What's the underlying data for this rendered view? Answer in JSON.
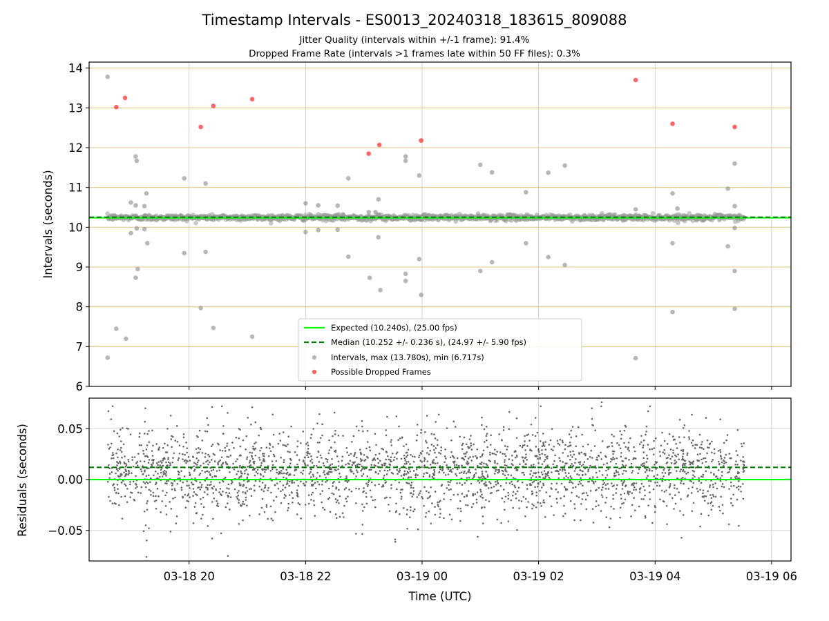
{
  "chart_data": [
    {
      "type": "scatter",
      "title": "Timestamp Intervals - ES0013_20240318_183615_809088",
      "subtitle_line1": "Jitter Quality (intervals within +/-1 frame): 91.4%",
      "subtitle_line2": "Dropped Frame Rate (intervals >1 frames late within 50 FF files): 0.3%",
      "xlabel": "",
      "ylabel": "Intervals (seconds)",
      "x_is_time": true,
      "xlim": [
        "2024-03-18 18:17",
        "2024-03-19 06:20"
      ],
      "ylim": [
        6,
        14.15
      ],
      "y_ticks": [
        6,
        7,
        8,
        9,
        10,
        11,
        12,
        13,
        14
      ],
      "x_tick_positions": [
        "2024-03-18 20:00",
        "2024-03-18 22:00",
        "2024-03-19 00:00",
        "2024-03-19 02:00",
        "2024-03-19 04:00",
        "2024-03-19 06:00"
      ],
      "grid": true,
      "horizontal_reference_lines": [
        7,
        8,
        9,
        10,
        11,
        12,
        13,
        14
      ],
      "horizontal_reference_color": "#d4b86a",
      "expected_line": {
        "label": "Expected (10.240s), (25.00 fps)",
        "y": 10.24,
        "color": "#00ff00"
      },
      "median_line": {
        "label": "Median (10.252 +/- 0.236 s), (24.97 +/- 5.90 fps)",
        "y": 10.252,
        "color": "#008000"
      },
      "legend": {
        "placement": "lower center",
        "entries": [
          "Expected (10.240s), (25.00 fps)",
          "Median (10.252 +/- 0.236 s), (24.97 +/- 5.90 fps)",
          "Intervals, max (13.780s), min (6.717s)",
          "Possible Dropped Frames"
        ]
      },
      "series": [
        {
          "name": "Intervals, max (13.780s), min (6.717s)",
          "color": "#999999",
          "points": [
            [
              "2024-03-18 18:36",
              13.78
            ],
            [
              "2024-03-18 18:36",
              6.72
            ],
            [
              "2024-03-18 18:45",
              7.45
            ],
            [
              "2024-03-18 18:55",
              7.2
            ],
            [
              "2024-03-18 19:00",
              10.62
            ],
            [
              "2024-03-18 19:00",
              9.85
            ],
            [
              "2024-03-18 19:05",
              11.78
            ],
            [
              "2024-03-18 19:06",
              11.67
            ],
            [
              "2024-03-18 19:05",
              10.55
            ],
            [
              "2024-03-18 19:06",
              9.97
            ],
            [
              "2024-03-18 19:07",
              8.95
            ],
            [
              "2024-03-18 19:05",
              8.73
            ],
            [
              "2024-03-18 19:14",
              10.53
            ],
            [
              "2024-03-18 19:16",
              10.85
            ],
            [
              "2024-03-18 19:14",
              9.95
            ],
            [
              "2024-03-18 19:17",
              9.6
            ],
            [
              "2024-03-18 19:55",
              11.23
            ],
            [
              "2024-03-18 19:55",
              9.35
            ],
            [
              "2024-03-18 20:12",
              7.97
            ],
            [
              "2024-03-18 20:17",
              11.1
            ],
            [
              "2024-03-18 20:17",
              9.38
            ],
            [
              "2024-03-18 20:25",
              7.47
            ],
            [
              "2024-03-18 21:05",
              7.25
            ],
            [
              "2024-03-18 22:00",
              10.6
            ],
            [
              "2024-03-18 22:00",
              9.88
            ],
            [
              "2024-03-18 22:13",
              10.55
            ],
            [
              "2024-03-18 22:13",
              9.93
            ],
            [
              "2024-03-18 22:33",
              10.54
            ],
            [
              "2024-03-18 22:33",
              9.94
            ],
            [
              "2024-03-18 22:44",
              11.23
            ],
            [
              "2024-03-18 22:44",
              9.26
            ],
            [
              "2024-03-18 23:05",
              10.38
            ],
            [
              "2024-03-18 23:06",
              8.73
            ],
            [
              "2024-03-18 23:12",
              10.38
            ],
            [
              "2024-03-18 23:15",
              10.7
            ],
            [
              "2024-03-18 23:15",
              9.75
            ],
            [
              "2024-03-18 23:17",
              8.42
            ],
            [
              "2024-03-18 23:43",
              11.78
            ],
            [
              "2024-03-18 23:43",
              11.67
            ],
            [
              "2024-03-18 23:43",
              8.83
            ],
            [
              "2024-03-18 23:43",
              8.65
            ],
            [
              "2024-03-18 23:57",
              11.3
            ],
            [
              "2024-03-18 23:57",
              9.2
            ],
            [
              "2024-03-18 23:59",
              8.3
            ],
            [
              "2024-03-19 01:00",
              11.57
            ],
            [
              "2024-03-19 01:00",
              8.9
            ],
            [
              "2024-03-19 01:12",
              11.38
            ],
            [
              "2024-03-19 01:12",
              9.12
            ],
            [
              "2024-03-19 01:47",
              10.88
            ],
            [
              "2024-03-19 01:47",
              9.6
            ],
            [
              "2024-03-19 02:10",
              11.37
            ],
            [
              "2024-03-19 02:10",
              9.25
            ],
            [
              "2024-03-19 02:27",
              11.55
            ],
            [
              "2024-03-19 02:27",
              9.05
            ],
            [
              "2024-03-19 03:40",
              10.45
            ],
            [
              "2024-03-19 03:40",
              6.71
            ],
            [
              "2024-03-19 04:18",
              10.85
            ],
            [
              "2024-03-19 04:18",
              9.6
            ],
            [
              "2024-03-19 04:18",
              7.87
            ],
            [
              "2024-03-19 04:23",
              10.47
            ],
            [
              "2024-03-19 05:15",
              10.97
            ],
            [
              "2024-03-19 05:15",
              9.52
            ],
            [
              "2024-03-19 05:22",
              10.53
            ],
            [
              "2024-03-19 05:22",
              9.98
            ],
            [
              "2024-03-19 05:22",
              8.9
            ],
            [
              "2024-03-19 05:22",
              11.6
            ],
            [
              "2024-03-19 05:22",
              7.95
            ]
          ],
          "band_note": "about 2,700 further points between about 10.1 and 10.35 s across 18:36–05:32"
        },
        {
          "name": "Possible Dropped Frames",
          "color": "#ff0000",
          "points": [
            [
              "2024-03-18 18:45",
              13.02
            ],
            [
              "2024-03-18 18:54",
              13.25
            ],
            [
              "2024-03-18 20:12",
              12.52
            ],
            [
              "2024-03-18 20:25",
              13.05
            ],
            [
              "2024-03-18 21:05",
              13.22
            ],
            [
              "2024-03-18 23:05",
              11.85
            ],
            [
              "2024-03-18 23:16",
              12.07
            ],
            [
              "2024-03-18 23:59",
              12.18
            ],
            [
              "2024-03-19 03:40",
              13.7
            ],
            [
              "2024-03-19 04:18",
              12.6
            ],
            [
              "2024-03-19 05:22",
              12.52
            ]
          ]
        }
      ]
    },
    {
      "type": "scatter",
      "title": "",
      "xlabel": "Time (UTC)",
      "ylabel": "Residuals (seconds)",
      "x_is_time": true,
      "xlim": [
        "2024-03-18 18:17",
        "2024-03-19 06:20"
      ],
      "ylim": [
        -0.08,
        0.08
      ],
      "y_ticks": [
        -0.05,
        0.0,
        0.05
      ],
      "y_tick_labels": [
        "−0.05",
        "0.00",
        "0.05"
      ],
      "x_ticks": [
        "2024-03-18 20:00",
        "2024-03-18 22:00",
        "2024-03-19 00:00",
        "2024-03-19 02:00",
        "2024-03-19 04:00",
        "2024-03-19 06:00"
      ],
      "x_tick_labels": [
        "03-18 20",
        "03-18 22",
        "03-19 00",
        "03-19 02",
        "03-19 04",
        "03-19 06"
      ],
      "grid": true,
      "expected_line": {
        "y": 0.0,
        "color": "#00ff00"
      },
      "median_line": {
        "y": 0.012,
        "color": "#008000"
      },
      "series": [
        {
          "name": "",
          "color": "#666666",
          "points_note": "about 2,700 residual points spanning about -0.076 to 0.076 s across 18:36–05:32",
          "extremes": [
            [
              "2024-03-18 19:16",
              -0.076
            ],
            [
              "2024-03-18 20:40",
              -0.075
            ],
            [
              "2024-03-18 19:15",
              0.07
            ],
            [
              "2024-03-18 21:05",
              0.071
            ],
            [
              "2024-03-19 03:05",
              0.076
            ],
            [
              "2024-03-19 02:55",
              0.07
            ]
          ]
        }
      ]
    }
  ]
}
